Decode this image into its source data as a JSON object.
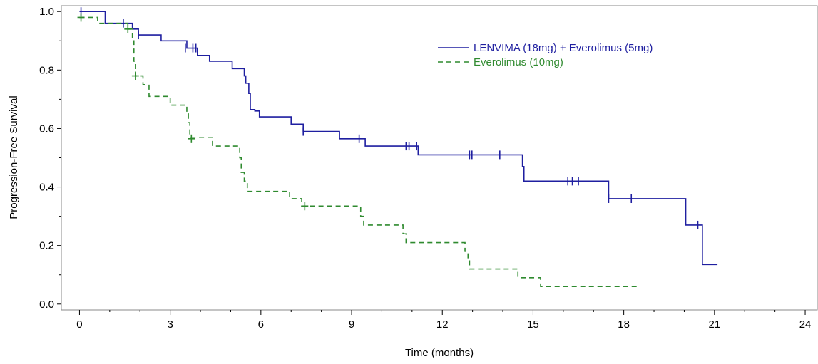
{
  "chart_data": {
    "type": "line",
    "title": "",
    "xlabel": "Time (months)",
    "ylabel": "Progression-Free Survival",
    "xlim": [
      -0.6,
      24.4
    ],
    "ylim": [
      -0.02,
      1.02
    ],
    "xticks": [
      "0",
      "3",
      "6",
      "9",
      "12",
      "15",
      "18",
      "21",
      "24"
    ],
    "xtick_values": [
      0,
      3,
      6,
      9,
      12,
      15,
      18,
      21,
      24
    ],
    "yticks": [
      "0.0",
      "0.2",
      "0.4",
      "0.6",
      "0.8",
      "1.0"
    ],
    "ytick_values": [
      0.0,
      0.2,
      0.4,
      0.6,
      0.8,
      1.0
    ],
    "grid": false,
    "legend_position": "top-right",
    "series": [
      {
        "name": "LENVIMA (18mg) + Everolimus (5mg)",
        "color": "#1f1fa0",
        "style": "solid",
        "step_points": [
          [
            0,
            1.0
          ],
          [
            0.85,
            0.96
          ],
          [
            1.5,
            0.96
          ],
          [
            1.75,
            0.94
          ],
          [
            1.95,
            0.92
          ],
          [
            2.7,
            0.9
          ],
          [
            3.55,
            0.875
          ],
          [
            3.9,
            0.85
          ],
          [
            4.3,
            0.83
          ],
          [
            5.05,
            0.805
          ],
          [
            5.45,
            0.78
          ],
          [
            5.5,
            0.755
          ],
          [
            5.6,
            0.72
          ],
          [
            5.65,
            0.665
          ],
          [
            5.8,
            0.66
          ],
          [
            5.95,
            0.64
          ],
          [
            7.0,
            0.615
          ],
          [
            7.4,
            0.59
          ],
          [
            8.55,
            0.59
          ],
          [
            8.6,
            0.565
          ],
          [
            9.45,
            0.54
          ],
          [
            11.2,
            0.51
          ],
          [
            14.65,
            0.47
          ],
          [
            14.7,
            0.42
          ],
          [
            17.5,
            0.36
          ],
          [
            20.05,
            0.27
          ],
          [
            20.6,
            0.135
          ],
          [
            21.1,
            0.135
          ]
        ],
        "censor_points": [
          [
            0.05,
            1.0
          ],
          [
            1.45,
            0.96
          ],
          [
            1.95,
            0.92
          ],
          [
            3.5,
            0.875
          ],
          [
            3.75,
            0.875
          ],
          [
            3.85,
            0.875
          ],
          [
            7.4,
            0.59
          ],
          [
            9.25,
            0.565
          ],
          [
            10.8,
            0.54
          ],
          [
            10.9,
            0.54
          ],
          [
            11.15,
            0.54
          ],
          [
            12.9,
            0.51
          ],
          [
            12.98,
            0.51
          ],
          [
            13.9,
            0.51
          ],
          [
            16.15,
            0.42
          ],
          [
            16.3,
            0.42
          ],
          [
            16.5,
            0.42
          ],
          [
            17.5,
            0.36
          ],
          [
            18.25,
            0.36
          ],
          [
            20.45,
            0.27
          ]
        ]
      },
      {
        "name": "Everolimus (10mg)",
        "color": "#2f8a2f",
        "style": "dashed",
        "step_points": [
          [
            0,
            0.98
          ],
          [
            0.3,
            0.98
          ],
          [
            0.6,
            0.96
          ],
          [
            1.6,
            0.94
          ],
          [
            1.75,
            0.9
          ],
          [
            1.8,
            0.83
          ],
          [
            1.85,
            0.78
          ],
          [
            2.1,
            0.75
          ],
          [
            2.3,
            0.71
          ],
          [
            3.0,
            0.68
          ],
          [
            3.55,
            0.65
          ],
          [
            3.6,
            0.62
          ],
          [
            3.65,
            0.57
          ],
          [
            4.4,
            0.54
          ],
          [
            5.3,
            0.5
          ],
          [
            5.35,
            0.45
          ],
          [
            5.45,
            0.42
          ],
          [
            5.55,
            0.385
          ],
          [
            6.95,
            0.36
          ],
          [
            7.35,
            0.335
          ],
          [
            9.3,
            0.3
          ],
          [
            9.4,
            0.27
          ],
          [
            10.7,
            0.24
          ],
          [
            10.8,
            0.21
          ],
          [
            12.75,
            0.18
          ],
          [
            12.85,
            0.15
          ],
          [
            12.9,
            0.12
          ],
          [
            14.5,
            0.09
          ],
          [
            15.25,
            0.06
          ],
          [
            18.5,
            0.06
          ]
        ],
        "censor_points": [
          [
            0.05,
            0.98
          ],
          [
            1.6,
            0.94
          ],
          [
            1.85,
            0.78
          ],
          [
            3.7,
            0.565
          ],
          [
            7.45,
            0.335
          ]
        ]
      }
    ]
  }
}
